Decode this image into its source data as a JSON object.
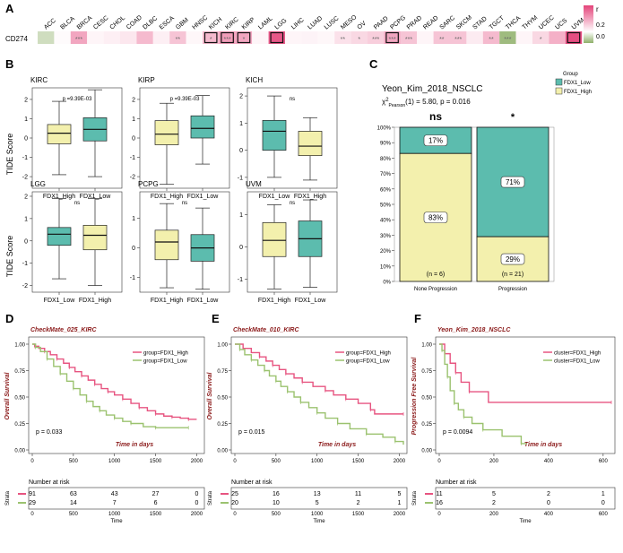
{
  "panel_letters": {
    "A": "A",
    "B": "B",
    "C": "C",
    "D": "D",
    "E": "E",
    "F": "F"
  },
  "heatmap": {
    "row_label": "CD274",
    "cancers": [
      "ACC",
      "BLCA",
      "BRCA",
      "CESC",
      "CHOL",
      "COAD",
      "DLBC",
      "ESCA",
      "GBM",
      "HNSC",
      "KICH",
      "KIRC",
      "KIRP",
      "LAML",
      "LGG",
      "LIHC",
      "LUAD",
      "LUSC",
      "MESO",
      "OV",
      "PAAD",
      "PCPG",
      "PRAD",
      "READ",
      "SARC",
      "SKCM",
      "STAD",
      "TGCT",
      "THCA",
      "THYM",
      "UCEC",
      "UCS",
      "UVM"
    ],
    "r_values": [
      -0.15,
      0.02,
      0.45,
      0.05,
      0.08,
      0.12,
      0.35,
      0.08,
      0.3,
      0.04,
      0.35,
      0.5,
      0.45,
      0.05,
      0.85,
      0.05,
      0.06,
      0.04,
      0.15,
      0.2,
      0.25,
      0.45,
      0.3,
      0.05,
      0.3,
      0.3,
      0.1,
      0.35,
      -0.3,
      0.05,
      0.2,
      0.4,
      0.9
    ],
    "stars": [
      "",
      "",
      "***",
      "",
      "",
      "",
      "",
      "",
      "**",
      "",
      "*",
      "***",
      "*",
      "",
      "",
      "",
      "",
      "",
      "**",
      "*",
      "***",
      "***",
      "***",
      "",
      "**",
      "***",
      "",
      "**",
      "***",
      "",
      "*",
      "",
      ""
    ],
    "boxed": [
      10,
      11,
      12,
      14,
      21,
      32
    ],
    "legend": {
      "title": "r",
      "ticks": [
        "0.2",
        "0.0"
      ]
    }
  },
  "tide": {
    "ylabel": "TIDE Score",
    "panels": [
      {
        "title": "KIRC",
        "p": "p =9.39E-03",
        "order": [
          "FDX1_High",
          "FDX1_Low"
        ],
        "yticks": [
          -2,
          -1,
          0,
          1,
          2
        ],
        "ylim": [
          -2.6,
          2.6
        ],
        "boxes": [
          {
            "group": "FDX1_High",
            "q1": -0.3,
            "med": 0.25,
            "q3": 0.7,
            "lo": -1.9,
            "hi": 1.9
          },
          {
            "group": "FDX1_Low",
            "q1": -0.15,
            "med": 0.45,
            "q3": 1.05,
            "lo": -2.0,
            "hi": 2.5
          }
        ]
      },
      {
        "title": "KIRP",
        "p": "p =9.39E-03",
        "order": [
          "FDX1_High",
          "FDX1_Low"
        ],
        "yticks": [
          -2,
          -1,
          0,
          1,
          2
        ],
        "ylim": [
          -2.6,
          2.6
        ],
        "boxes": [
          {
            "group": "FDX1_High",
            "q1": -0.35,
            "med": 0.2,
            "q3": 0.9,
            "lo": -2.4,
            "hi": 1.8
          },
          {
            "group": "FDX1_Low",
            "q1": 0.0,
            "med": 0.5,
            "q3": 1.15,
            "lo": -1.35,
            "hi": 2.2
          }
        ]
      },
      {
        "title": "KICH",
        "p": "ns",
        "order": [
          "FDX1_Low",
          "FDX1_High"
        ],
        "yticks": [
          -1,
          0,
          1,
          2
        ],
        "ylim": [
          -1.4,
          2.3
        ],
        "boxes": [
          {
            "group": "FDX1_Low",
            "q1": 0.0,
            "med": 0.7,
            "q3": 1.1,
            "lo": -1.0,
            "hi": 2.0
          },
          {
            "group": "FDX1_High",
            "q1": -0.2,
            "med": 0.15,
            "q3": 0.7,
            "lo": -1.1,
            "hi": 1.2
          }
        ]
      },
      {
        "title": "LGG",
        "p": "ns",
        "order": [
          "FDX1_Low",
          "FDX1_High"
        ],
        "yticks": [
          -2,
          -1,
          0,
          1,
          2
        ],
        "ylim": [
          -2.3,
          2.2
        ],
        "boxes": [
          {
            "group": "FDX1_Low",
            "q1": -0.2,
            "med": 0.3,
            "q3": 0.6,
            "lo": -1.7,
            "hi": 1.9
          },
          {
            "group": "FDX1_High",
            "q1": -0.4,
            "med": 0.25,
            "q3": 0.7,
            "lo": -2.0,
            "hi": 1.9
          }
        ]
      },
      {
        "title": "PCPG",
        "p": "ns",
        "order": [
          "FDX1_High",
          "FDX1_Low"
        ],
        "yticks": [
          -1,
          0,
          1
        ],
        "ylim": [
          -1.5,
          1.9
        ],
        "boxes": [
          {
            "group": "FDX1_High",
            "q1": -0.4,
            "med": 0.2,
            "q3": 0.6,
            "lo": -1.35,
            "hi": 1.5
          },
          {
            "group": "FDX1_Low",
            "q1": -0.45,
            "med": 0.0,
            "q3": 0.45,
            "lo": -1.4,
            "hi": 1.35
          }
        ]
      },
      {
        "title": "UVM",
        "p": "ns",
        "order": [
          "FDX1_High",
          "FDX1_Low"
        ],
        "yticks": [
          -1,
          0,
          1
        ],
        "ylim": [
          -1.4,
          1.7
        ],
        "boxes": [
          {
            "group": "FDX1_High",
            "q1": -0.3,
            "med": 0.2,
            "q3": 0.75,
            "lo": -1.3,
            "hi": 1.3
          },
          {
            "group": "FDX1_Low",
            "q1": -0.3,
            "med": 0.25,
            "q3": 0.8,
            "lo": -1.25,
            "hi": 1.45
          }
        ]
      }
    ]
  },
  "stacked": {
    "title": "Yeon_Kim_2018_NSCLC",
    "stat": "(1) = 5.80, p = 0.016",
    "stat_prefix": "χ",
    "stat_sup": "2",
    "stat_sub": "Pearson",
    "legend_title": "Group",
    "legend": [
      "FDX1_Low",
      "FDX1_High"
    ],
    "yticks": [
      "0%",
      "10%",
      "20%",
      "30%",
      "40%",
      "50%",
      "60%",
      "70%",
      "80%",
      "90%",
      "100%"
    ],
    "bars": [
      {
        "label": "None Progression",
        "n": "(n = 6)",
        "sig": "ns",
        "low_pct": 17,
        "high_pct": 83,
        "low_text": "17%",
        "high_text": "83%"
      },
      {
        "label": "Progression",
        "n": "(n = 21)",
        "sig": "*",
        "low_pct": 71,
        "high_pct": 29,
        "low_text": "71%",
        "high_text": "29%"
      }
    ]
  },
  "km": [
    {
      "letter": "D",
      "title": "CheckMate_025_KIRC",
      "ylabel": "Overall Survival",
      "xlabel": "Time in days",
      "p": "p = 0.033",
      "xticks": [
        0,
        500,
        1000,
        1500,
        2000
      ],
      "xmax": 2050,
      "yticks": [
        0.0,
        0.25,
        0.5,
        0.75,
        1.0
      ],
      "legend": [
        "group=FDX1_High",
        "group=FDX1_Low"
      ],
      "series": [
        {
          "name": "FDX1_High",
          "pts": [
            [
              0,
              1
            ],
            [
              30,
              0.98
            ],
            [
              80,
              0.96
            ],
            [
              150,
              0.93
            ],
            [
              220,
              0.9
            ],
            [
              300,
              0.86
            ],
            [
              380,
              0.82
            ],
            [
              450,
              0.78
            ],
            [
              520,
              0.74
            ],
            [
              600,
              0.7
            ],
            [
              680,
              0.66
            ],
            [
              760,
              0.62
            ],
            [
              840,
              0.58
            ],
            [
              920,
              0.55
            ],
            [
              1000,
              0.52
            ],
            [
              1100,
              0.48
            ],
            [
              1200,
              0.44
            ],
            [
              1300,
              0.4
            ],
            [
              1400,
              0.37
            ],
            [
              1500,
              0.34
            ],
            [
              1600,
              0.32
            ],
            [
              1700,
              0.31
            ],
            [
              1800,
              0.3
            ],
            [
              1900,
              0.29
            ],
            [
              2000,
              0.29
            ]
          ]
        },
        {
          "name": "FDX1_Low",
          "pts": [
            [
              0,
              1
            ],
            [
              40,
              0.97
            ],
            [
              100,
              0.93
            ],
            [
              180,
              0.86
            ],
            [
              260,
              0.79
            ],
            [
              340,
              0.72
            ],
            [
              420,
              0.65
            ],
            [
              500,
              0.58
            ],
            [
              580,
              0.52
            ],
            [
              660,
              0.46
            ],
            [
              740,
              0.41
            ],
            [
              820,
              0.37
            ],
            [
              900,
              0.33
            ],
            [
              1000,
              0.3
            ],
            [
              1100,
              0.27
            ],
            [
              1200,
              0.25
            ],
            [
              1350,
              0.22
            ],
            [
              1500,
              0.21
            ],
            [
              1700,
              0.21
            ],
            [
              1900,
              0.21
            ]
          ]
        }
      ],
      "risk": {
        "High": [
          "91",
          "63",
          "43",
          "27",
          "0"
        ],
        "Low": [
          "29",
          "14",
          "7",
          "6",
          "0"
        ]
      },
      "risk_ticks": [
        "0",
        "500",
        "1000",
        "1500",
        "2000"
      ]
    },
    {
      "letter": "E",
      "title": "CheckMate_010_KIRC",
      "ylabel": "Overall Survival",
      "xlabel": "Time in days",
      "p": "p = 0.015",
      "xticks": [
        0,
        500,
        1000,
        1500,
        2000
      ],
      "xmax": 2050,
      "yticks": [
        0.0,
        0.25,
        0.5,
        0.75,
        1.0
      ],
      "legend": [
        "group=FDX1_High",
        "group=FDX1_Low"
      ],
      "series": [
        {
          "name": "FDX1_High",
          "pts": [
            [
              0,
              1
            ],
            [
              100,
              0.96
            ],
            [
              200,
              0.92
            ],
            [
              300,
              0.88
            ],
            [
              380,
              0.84
            ],
            [
              460,
              0.8
            ],
            [
              540,
              0.76
            ],
            [
              620,
              0.72
            ],
            [
              720,
              0.68
            ],
            [
              820,
              0.64
            ],
            [
              950,
              0.6
            ],
            [
              1100,
              0.56
            ],
            [
              1200,
              0.52
            ],
            [
              1350,
              0.48
            ],
            [
              1500,
              0.44
            ],
            [
              1650,
              0.38
            ],
            [
              1700,
              0.34
            ],
            [
              2050,
              0.34
            ]
          ]
        },
        {
          "name": "FDX1_Low",
          "pts": [
            [
              0,
              1
            ],
            [
              60,
              0.95
            ],
            [
              120,
              0.9
            ],
            [
              200,
              0.85
            ],
            [
              280,
              0.8
            ],
            [
              360,
              0.75
            ],
            [
              420,
              0.7
            ],
            [
              500,
              0.65
            ],
            [
              560,
              0.6
            ],
            [
              640,
              0.55
            ],
            [
              720,
              0.5
            ],
            [
              800,
              0.45
            ],
            [
              900,
              0.4
            ],
            [
              1000,
              0.35
            ],
            [
              1100,
              0.3
            ],
            [
              1250,
              0.25
            ],
            [
              1400,
              0.2
            ],
            [
              1600,
              0.15
            ],
            [
              1800,
              0.12
            ],
            [
              1950,
              0.08
            ],
            [
              2050,
              0.05
            ]
          ]
        }
      ],
      "risk": {
        "High": [
          "25",
          "16",
          "13",
          "11",
          "5"
        ],
        "Low": [
          "20",
          "10",
          "5",
          "2",
          "1"
        ]
      },
      "risk_ticks": [
        "0",
        "500",
        "1000",
        "1500",
        "2000"
      ]
    },
    {
      "letter": "F",
      "title": "Yeon_Kim_2018_NSCLC",
      "ylabel": "Progression Free Survival",
      "xlabel": "Time in days",
      "p": "p = 0.0094",
      "xticks": [
        0,
        200,
        400,
        600
      ],
      "xmax": 630,
      "yticks": [
        0.0,
        0.25,
        0.5,
        0.75,
        1.0
      ],
      "legend": [
        "cluster=FDX1_High",
        "cluster=FDX1_Low"
      ],
      "series": [
        {
          "name": "FDX1_High",
          "pts": [
            [
              0,
              1
            ],
            [
              20,
              0.91
            ],
            [
              40,
              0.82
            ],
            [
              60,
              0.73
            ],
            [
              80,
              0.64
            ],
            [
              110,
              0.55
            ],
            [
              180,
              0.45
            ],
            [
              630,
              0.45
            ]
          ]
        },
        {
          "name": "FDX1_Low",
          "pts": [
            [
              0,
              1
            ],
            [
              10,
              0.94
            ],
            [
              20,
              0.81
            ],
            [
              30,
              0.69
            ],
            [
              40,
              0.56
            ],
            [
              55,
              0.44
            ],
            [
              70,
              0.38
            ],
            [
              90,
              0.31
            ],
            [
              120,
              0.25
            ],
            [
              160,
              0.19
            ],
            [
              230,
              0.13
            ],
            [
              300,
              0.06
            ],
            [
              320,
              0.06
            ]
          ]
        }
      ],
      "risk": {
        "High": [
          "11",
          "5",
          "2",
          "1"
        ],
        "Low": [
          "16",
          "2",
          "0",
          "0"
        ]
      },
      "risk_ticks": [
        "0",
        "200",
        "400",
        "600"
      ]
    }
  ],
  "risk_title": "Number at risk",
  "strata_label": "Strata",
  "time_label": "Time",
  "colors": {
    "teal": "#5cbcae",
    "yellow": "#f3f0ad",
    "pink": "#e75480",
    "green": "#9bc26f",
    "heat_pos": "#e4447a",
    "heat_neg": "#8fb06a",
    "title_red": "#8b1a1a"
  }
}
